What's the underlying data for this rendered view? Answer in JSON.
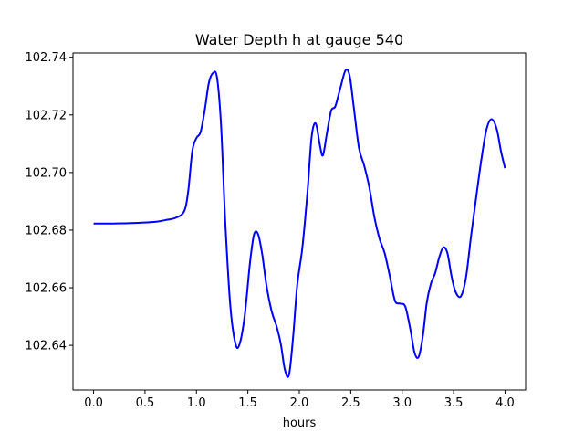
{
  "chart_data": {
    "type": "line",
    "title": "Water Depth h at gauge 540",
    "xlabel": "hours",
    "ylabel": "",
    "xlim": [
      -0.2,
      4.2
    ],
    "ylim": [
      102.6245,
      102.7415
    ],
    "xticks": [
      0.0,
      0.5,
      1.0,
      1.5,
      2.0,
      2.5,
      3.0,
      3.5,
      4.0
    ],
    "xtick_labels": [
      "0.0",
      "0.5",
      "1.0",
      "1.5",
      "2.0",
      "2.5",
      "3.0",
      "3.5",
      "4.0"
    ],
    "yticks": [
      102.64,
      102.66,
      102.68,
      102.7,
      102.72,
      102.74
    ],
    "ytick_labels": [
      "102.64",
      "102.66",
      "102.68",
      "102.70",
      "102.72",
      "102.74"
    ],
    "grid": false,
    "legend": "none",
    "series": [
      {
        "color": "#0000ff",
        "x": [
          0.0,
          0.2,
          0.4,
          0.6,
          0.7,
          0.8,
          0.88,
          0.92,
          0.96,
          1.0,
          1.04,
          1.08,
          1.12,
          1.16,
          1.2,
          1.24,
          1.28,
          1.33,
          1.38,
          1.42,
          1.47,
          1.52,
          1.56,
          1.6,
          1.64,
          1.68,
          1.73,
          1.78,
          1.82,
          1.86,
          1.9,
          1.94,
          1.98,
          2.03,
          2.08,
          2.12,
          2.16,
          2.2,
          2.23,
          2.27,
          2.31,
          2.35,
          2.4,
          2.45,
          2.49,
          2.53,
          2.58,
          2.63,
          2.68,
          2.73,
          2.78,
          2.83,
          2.88,
          2.93,
          2.98,
          3.03,
          3.08,
          3.12,
          3.16,
          3.2,
          3.24,
          3.28,
          3.32,
          3.36,
          3.4,
          3.44,
          3.48,
          3.52,
          3.57,
          3.62,
          3.67,
          3.72,
          3.77,
          3.82,
          3.87,
          3.92,
          3.96,
          4.0
        ],
        "y": [
          102.6823,
          102.6823,
          102.6825,
          102.6829,
          102.6835,
          102.6843,
          102.6865,
          102.6935,
          102.7075,
          102.712,
          102.714,
          102.7215,
          102.731,
          102.7345,
          102.733,
          102.716,
          102.683,
          102.6535,
          102.6405,
          102.6405,
          102.6505,
          102.6685,
          102.6785,
          102.6785,
          102.6715,
          102.661,
          102.652,
          102.6465,
          102.6405,
          102.6315,
          102.6298,
          102.643,
          102.661,
          102.674,
          102.6935,
          102.7125,
          102.717,
          102.7095,
          102.706,
          102.714,
          102.7215,
          102.723,
          102.7295,
          102.7355,
          102.7335,
          102.7225,
          102.7085,
          102.7025,
          102.695,
          102.6845,
          102.677,
          102.672,
          102.664,
          102.6555,
          102.6545,
          102.6535,
          102.6455,
          102.6375,
          102.636,
          102.643,
          102.655,
          102.6615,
          102.665,
          102.6705,
          102.674,
          102.672,
          102.664,
          102.6585,
          102.657,
          102.6635,
          102.678,
          102.6915,
          102.7045,
          102.715,
          102.7185,
          102.715,
          102.7075,
          102.7015
        ]
      }
    ]
  }
}
